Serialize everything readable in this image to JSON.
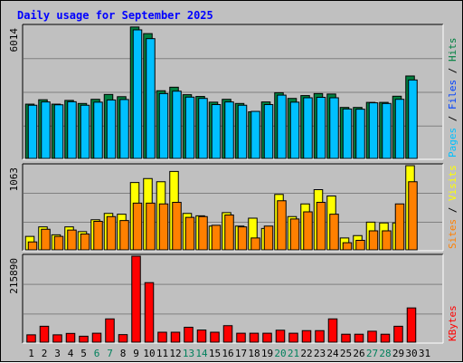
{
  "chart_data": {
    "type": "bar",
    "title": "Daily usage for September 2025",
    "days": [
      "1",
      "2",
      "3",
      "4",
      "5",
      "6",
      "7",
      "8",
      "9",
      "10",
      "11",
      "12",
      "13",
      "14",
      "15",
      "16",
      "17",
      "18",
      "19",
      "20",
      "21",
      "22",
      "23",
      "24",
      "25",
      "26",
      "27",
      "28",
      "29",
      "30",
      "31"
    ],
    "weekend_days": [
      "6",
      "7",
      "13",
      "14",
      "20",
      "21",
      "27",
      "28"
    ],
    "panels": [
      {
        "id": "hits-files-pages",
        "ymax": 6014,
        "ymax_label": "6014",
        "legend": [
          {
            "label": "Pages",
            "color": "#00c0ff"
          },
          {
            "label": " / ",
            "color": "#000000"
          },
          {
            "label": "Files",
            "color": "#0040ff"
          },
          {
            "label": " / ",
            "color": "#000000"
          },
          {
            "label": "Hits",
            "color": "#008040"
          }
        ],
        "series": [
          {
            "name": "Hits",
            "color": "#008040",
            "values": [
              2470,
              2670,
              2470,
              2640,
              2500,
              2690,
              2910,
              2810,
              5980,
              5680,
              3080,
              3240,
              2900,
              2820,
              2560,
              2690,
              2500,
              2120,
              2570,
              2990,
              2730,
              2860,
              2950,
              2930,
              2320,
              2320,
              2550,
              2550,
              2830,
              3750,
              null
            ]
          },
          {
            "name": "Pages",
            "color": "#00c0ff",
            "values": [
              2420,
              2570,
              2440,
              2580,
              2420,
              2560,
              2660,
              2680,
              5850,
              5450,
              2950,
              3060,
              2790,
              2730,
              2450,
              2570,
              2420,
              2140,
              2450,
              2880,
              2560,
              2760,
              2780,
              2760,
              2250,
              2240,
              2530,
              2500,
              2690,
              3570,
              null
            ]
          }
        ]
      },
      {
        "id": "visits-sites",
        "ymax": 1063,
        "ymax_label": "1063",
        "legend": [
          {
            "label": "Sites",
            "color": "#ff8000"
          },
          {
            "label": " / ",
            "color": "#000000"
          },
          {
            "label": "Visits",
            "color": "#ffff00"
          }
        ],
        "series": [
          {
            "name": "Visits",
            "color": "#ffff00",
            "values": [
              170,
              290,
              190,
              290,
              230,
              380,
              460,
              450,
              850,
              900,
              860,
              990,
              460,
              430,
              300,
              470,
              300,
              400,
              270,
              700,
              420,
              580,
              760,
              680,
              150,
              180,
              350,
              340,
              340,
              1063,
              null
            ]
          },
          {
            "name": "Sites",
            "color": "#ff8000",
            "values": [
              100,
              260,
              170,
              250,
              200,
              360,
              420,
              370,
              590,
              590,
              580,
              600,
              410,
              420,
              310,
              440,
              290,
              150,
              300,
              620,
              390,
              480,
              600,
              450,
              90,
              120,
              240,
              240,
              580,
              860,
              null
            ]
          }
        ]
      },
      {
        "id": "kbytes",
        "ymax": 215890,
        "ymax_label": "215890",
        "legend": [
          {
            "label": "KBytes",
            "color": "#ff0000"
          }
        ],
        "series": [
          {
            "name": "KBytes",
            "color": "#ff0000",
            "values": [
              18500,
              40000,
              18500,
              22000,
              15000,
              22500,
              58500,
              19000,
              215890,
              149500,
              25000,
              25000,
              37500,
              30500,
              25000,
              41500,
              22500,
              22500,
              22500,
              30000,
              22500,
              29000,
              29000,
              58500,
              20000,
              20000,
              27500,
              20000,
              40000,
              86000,
              null
            ]
          }
        ]
      }
    ]
  }
}
